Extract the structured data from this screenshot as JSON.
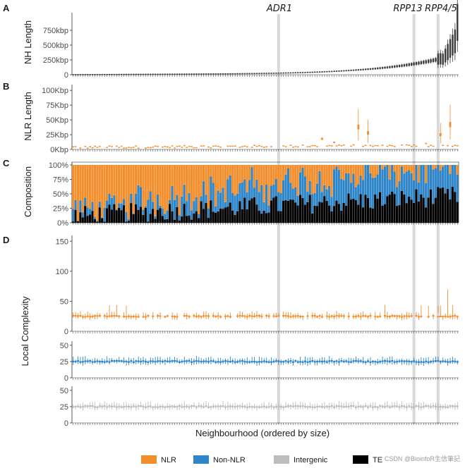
{
  "chart_data": [
    {
      "panel": "A",
      "type": "box",
      "ylabel": "NH Length",
      "ylim": [
        0,
        1000000
      ],
      "yticks": [
        0,
        250000,
        500000,
        750000
      ],
      "ytick_labels": [
        "0",
        "250kbp",
        "500kbp",
        "750kbp"
      ],
      "highlight_genes": [
        "ADR1",
        "RPP13",
        "RPP4/5"
      ],
      "n_neighbourhoods": 160,
      "median_min": 8000,
      "median_max": 880000
    },
    {
      "panel": "B",
      "type": "box",
      "ylabel": "NLR Length",
      "ylim": [
        0,
        105000
      ],
      "yticks": [
        0,
        25000,
        50000,
        75000,
        100000
      ],
      "ytick_labels": [
        "0Kbp",
        "25Kbp",
        "50Kbp",
        "75Kbp",
        "100Kbp"
      ],
      "series": "NLR"
    },
    {
      "panel": "C",
      "type": "stacked-bar",
      "ylabel": "Composition",
      "ylim": [
        0,
        1
      ],
      "yticks": [
        0,
        0.25,
        0.5,
        0.75,
        1
      ],
      "ytick_labels": [
        "0%",
        "25%",
        "50%",
        "75%",
        "100%"
      ],
      "series": [
        "TE",
        "Non-NLR",
        "NLR"
      ]
    },
    {
      "panel": "D",
      "type": "box",
      "ylabel": "Local Complexity",
      "subpanels": [
        {
          "series": "NLR",
          "ylim": [
            0,
            155
          ],
          "yticks": [
            0,
            50,
            100,
            150
          ],
          "ytick_labels": [
            "0",
            "50",
            "100",
            "150"
          ],
          "baseline": 25
        },
        {
          "series": "Non-NLR",
          "ylim": [
            0,
            52
          ],
          "yticks": [
            0,
            25,
            50
          ],
          "ytick_labels": [
            "0",
            "25",
            "50"
          ],
          "baseline": 25
        },
        {
          "series": "Intergenic",
          "ylim": [
            0,
            52
          ],
          "yticks": [
            0,
            25,
            50
          ],
          "ytick_labels": [
            "0",
            "25",
            "50"
          ],
          "baseline": 25
        }
      ]
    }
  ],
  "xlabel": "Neighbourhood (ordered by size)",
  "legend": [
    {
      "label": "NLR",
      "color": "#F28E2B"
    },
    {
      "label": "Non-NLR",
      "color": "#2E86C9"
    },
    {
      "label": "Intergenic",
      "color": "#BDBDBD"
    },
    {
      "label": "TE",
      "color": "#000000"
    }
  ],
  "colors": {
    "nlr": "#F28E2B",
    "nonnlr": "#2E86C9",
    "intergenic": "#BDBDBD",
    "te": "#000000",
    "box": "#3a3a3a",
    "highlight": "#d9d9d9"
  },
  "watermark": "CSDN @BioinfoR生信筆記"
}
